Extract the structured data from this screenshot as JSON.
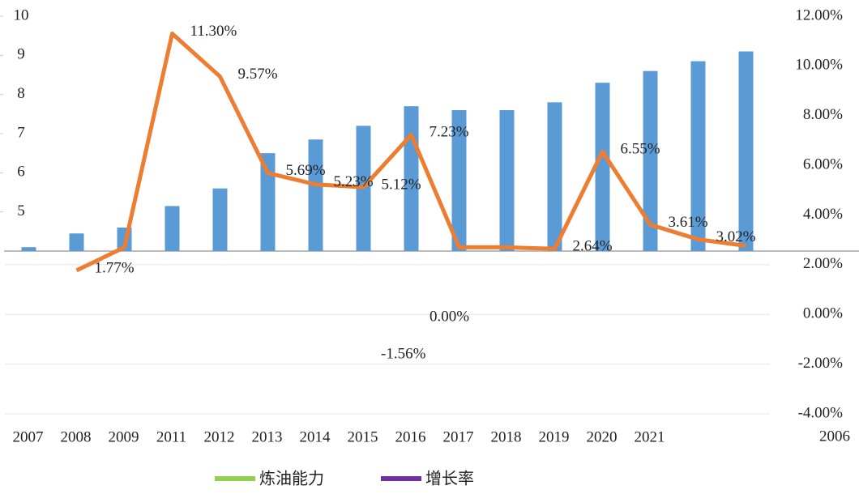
{
  "chart_data": {
    "type": "bar_line",
    "categories": [
      "2007",
      "2008",
      "2009",
      "2011",
      "2012",
      "2013",
      "2014",
      "2015",
      "2016",
      "2017",
      "2018",
      "2019",
      "2020",
      "2021",
      null,
      null
    ],
    "series": [
      {
        "name": "炼油能力",
        "color": "#5b9bd5",
        "legend_color": "#92d050",
        "values": [
          4.1,
          4.45,
          4.6,
          5.15,
          5.6,
          6.5,
          6.85,
          7.2,
          7.7,
          7.6,
          7.6,
          7.8,
          8.3,
          8.6,
          8.85,
          9.1
        ]
      },
      {
        "name": "增长率",
        "color": "#ed7d31",
        "legend_color": "#7030a0",
        "axis": "y2",
        "values": [
          null,
          1.77,
          2.7,
          11.3,
          9.57,
          5.69,
          5.23,
          5.12,
          7.23,
          2.7,
          2.7,
          2.64,
          6.55,
          3.61,
          3.02,
          2.76
        ],
        "value_labels": [
          null,
          "1.77%",
          null,
          "11.30%",
          "9.57%",
          "5.69%",
          "5.23%",
          "5.12%",
          "7.23%",
          null,
          null,
          "2.64%",
          "6.55%",
          "3.61%",
          "3.02%",
          null
        ]
      }
    ],
    "annotations": [
      "0.00%",
      "-1.56%",
      "2006"
    ],
    "ylim": [
      4,
      10
    ],
    "yticks": [
      5,
      6,
      7,
      8,
      9,
      10
    ],
    "y2lim": [
      -4,
      12
    ],
    "y2ticks": [
      {
        "value": 12,
        "label": "12.00%"
      },
      {
        "value": 10,
        "label": "10.00%"
      },
      {
        "value": 8,
        "label": "8.00%"
      },
      {
        "value": 6,
        "label": "6.00%"
      },
      {
        "value": 4,
        "label": "4.00%"
      },
      {
        "value": 2,
        "label": "2.00%"
      },
      {
        "value": 0,
        "label": "0.00%"
      },
      {
        "value": -2,
        "label": "-2.00%"
      },
      {
        "value": -4,
        "label": "-4.00%"
      }
    ],
    "legend": "bottom"
  }
}
